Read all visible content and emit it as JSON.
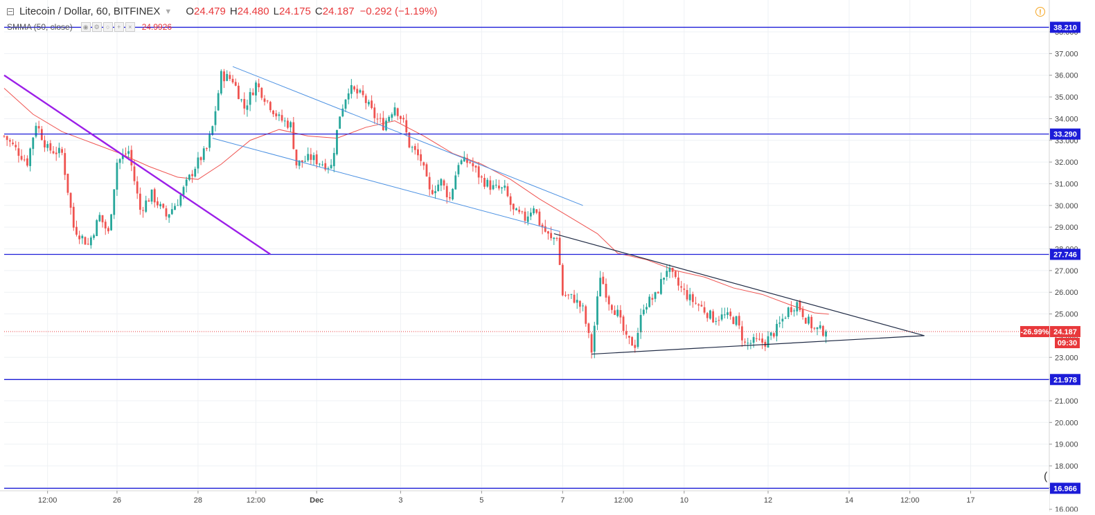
{
  "header": {
    "symbol_title": "Litecoin / Dollar, 60, BITFINEX",
    "ohlc": [
      {
        "k": "O",
        "v": "24.479"
      },
      {
        "k": "H",
        "v": "24.480"
      },
      {
        "k": "L",
        "v": "24.175"
      },
      {
        "k": "C",
        "v": "24.187"
      }
    ],
    "change": "−0.292 (−1.19%)",
    "indicator_label": "SMMA (50, close)",
    "indicator_value": "24.9926"
  },
  "icons": {
    "collapse": "collapse-icon",
    "warning": "warning-icon",
    "indicator_controls": [
      "visibility-icon",
      "settings-icon",
      "source-icon",
      "add-icon",
      "remove-icon"
    ]
  },
  "colors": {
    "candle_up": "#26a69a",
    "candle_down": "#ef5350",
    "smma": "#ef5350",
    "horizontal_level": "#1c1cd8",
    "purple_trendline": "#9c1fe8",
    "channel_line": "#4a90e2",
    "triangle_line": "#1f2a44",
    "last_price_label": "#e8383b",
    "warning": "#f5a623"
  },
  "corner_glyph": "(",
  "chart_data": {
    "type": "candlestick",
    "title": "Litecoin / Dollar, 60, BITFINEX",
    "timeframe": "60",
    "ylim": [
      16,
      38.5
    ],
    "grid": true,
    "x_tick_labels": [
      {
        "t": 15,
        "label": "12:00"
      },
      {
        "t": 39,
        "label": "26"
      },
      {
        "t": 67,
        "label": "28"
      },
      {
        "t": 87,
        "label": "12:00"
      },
      {
        "t": 108,
        "label": "Dec"
      },
      {
        "t": 137,
        "label": "3"
      },
      {
        "t": 165,
        "label": "5"
      },
      {
        "t": 193,
        "label": "7"
      },
      {
        "t": 214,
        "label": "12:00"
      },
      {
        "t": 235,
        "label": "10"
      },
      {
        "t": 264,
        "label": "12"
      },
      {
        "t": 292,
        "label": "14"
      },
      {
        "t": 313,
        "label": "12:00"
      },
      {
        "t": 334,
        "label": "17"
      }
    ],
    "y_ticks": [
      "16.000",
      "17.000",
      "18.000",
      "19.000",
      "20.000",
      "21.000",
      "22.000",
      "23.000",
      "24.000",
      "25.000",
      "26.000",
      "27.000",
      "28.000",
      "29.000",
      "30.000",
      "31.000",
      "32.000",
      "33.000",
      "34.000",
      "35.000",
      "36.000",
      "37.000",
      "38.000"
    ],
    "horizontal_levels": [
      {
        "value": 38.21,
        "label": "38.210"
      },
      {
        "value": 33.29,
        "label": "33.290"
      },
      {
        "value": 27.746,
        "label": "27.746"
      },
      {
        "value": 21.978,
        "label": "21.978"
      },
      {
        "value": 16.966,
        "label": "16.966"
      }
    ],
    "last_price": {
      "value": 24.187,
      "label": "24.187",
      "change_label": "-26.99%",
      "countdown": "09:30"
    },
    "trendlines": [
      {
        "kind": "purple",
        "points": [
          [
            0,
            36.0
          ],
          [
            92,
            27.75
          ]
        ]
      },
      {
        "kind": "channel",
        "points": [
          [
            79,
            36.4
          ],
          [
            200,
            30.0
          ]
        ]
      },
      {
        "kind": "channel",
        "points": [
          [
            72,
            33.1
          ],
          [
            192,
            28.8
          ]
        ]
      },
      {
        "kind": "triangle",
        "points": [
          [
            190,
            28.7
          ],
          [
            318,
            24.0
          ]
        ]
      },
      {
        "kind": "triangle",
        "points": [
          [
            203,
            23.15
          ],
          [
            318,
            24.0
          ]
        ]
      }
    ],
    "anchors": [
      [
        0,
        33.2
      ],
      [
        8,
        32.0
      ],
      [
        11,
        33.8
      ],
      [
        15,
        32.6
      ],
      [
        20,
        32.4
      ],
      [
        24,
        29.0
      ],
      [
        29,
        28.2
      ],
      [
        33,
        29.5
      ],
      [
        36,
        28.7
      ],
      [
        39,
        32.0
      ],
      [
        43,
        32.5
      ],
      [
        47,
        29.8
      ],
      [
        51,
        30.5
      ],
      [
        56,
        29.5
      ],
      [
        60,
        30.2
      ],
      [
        66,
        31.8
      ],
      [
        70,
        32.6
      ],
      [
        72,
        33.6
      ],
      [
        75,
        36.0
      ],
      [
        79,
        35.8
      ],
      [
        83,
        34.5
      ],
      [
        87,
        35.6
      ],
      [
        91,
        34.8
      ],
      [
        95,
        34.0
      ],
      [
        99,
        33.7
      ],
      [
        101,
        31.9
      ],
      [
        106,
        32.2
      ],
      [
        109,
        32.0
      ],
      [
        113,
        31.8
      ],
      [
        116,
        34.2
      ],
      [
        119,
        35.4
      ],
      [
        124,
        35.0
      ],
      [
        128,
        34.1
      ],
      [
        131,
        33.7
      ],
      [
        135,
        34.6
      ],
      [
        138,
        33.8
      ],
      [
        140,
        32.8
      ],
      [
        144,
        32.1
      ],
      [
        147,
        30.6
      ],
      [
        151,
        31.1
      ],
      [
        154,
        30.3
      ],
      [
        157,
        32.0
      ],
      [
        161,
        32.0
      ],
      [
        165,
        31.2
      ],
      [
        169,
        30.8
      ],
      [
        173,
        30.7
      ],
      [
        176,
        29.7
      ],
      [
        180,
        29.4
      ],
      [
        183,
        30.0
      ],
      [
        185,
        29.2
      ],
      [
        189,
        28.4
      ],
      [
        191,
        28.6
      ],
      [
        193,
        25.9
      ],
      [
        197,
        25.7
      ],
      [
        200,
        25.2
      ],
      [
        203,
        23.3
      ],
      [
        206,
        26.8
      ],
      [
        209,
        25.6
      ],
      [
        212,
        25.0
      ],
      [
        215,
        23.8
      ],
      [
        218,
        23.6
      ],
      [
        221,
        25.4
      ],
      [
        225,
        25.8
      ],
      [
        229,
        27.1
      ],
      [
        233,
        26.3
      ],
      [
        237,
        25.7
      ],
      [
        241,
        25.3
      ],
      [
        245,
        24.8
      ],
      [
        249,
        24.9
      ],
      [
        253,
        24.7
      ],
      [
        256,
        23.6
      ],
      [
        259,
        23.7
      ],
      [
        263,
        23.7
      ],
      [
        267,
        24.3
      ],
      [
        271,
        25.2
      ],
      [
        274,
        25.5
      ],
      [
        277,
        24.8
      ],
      [
        280,
        24.3
      ],
      [
        284,
        24.19
      ]
    ],
    "smma": [
      [
        0,
        35.4
      ],
      [
        10,
        34.2
      ],
      [
        20,
        33.4
      ],
      [
        30,
        32.9
      ],
      [
        40,
        32.4
      ],
      [
        50,
        31.8
      ],
      [
        60,
        31.3
      ],
      [
        67,
        31.2
      ],
      [
        75,
        31.9
      ],
      [
        85,
        33.0
      ],
      [
        95,
        33.5
      ],
      [
        105,
        33.2
      ],
      [
        115,
        33.1
      ],
      [
        125,
        33.6
      ],
      [
        135,
        33.9
      ],
      [
        145,
        33.2
      ],
      [
        155,
        32.4
      ],
      [
        165,
        31.9
      ],
      [
        175,
        31.2
      ],
      [
        185,
        30.3
      ],
      [
        195,
        29.5
      ],
      [
        205,
        28.7
      ],
      [
        212,
        27.8
      ],
      [
        222,
        27.5
      ],
      [
        232,
        27.0
      ],
      [
        242,
        26.7
      ],
      [
        252,
        26.2
      ],
      [
        262,
        25.9
      ],
      [
        272,
        25.4
      ],
      [
        280,
        25.05
      ],
      [
        285,
        24.99
      ]
    ]
  }
}
